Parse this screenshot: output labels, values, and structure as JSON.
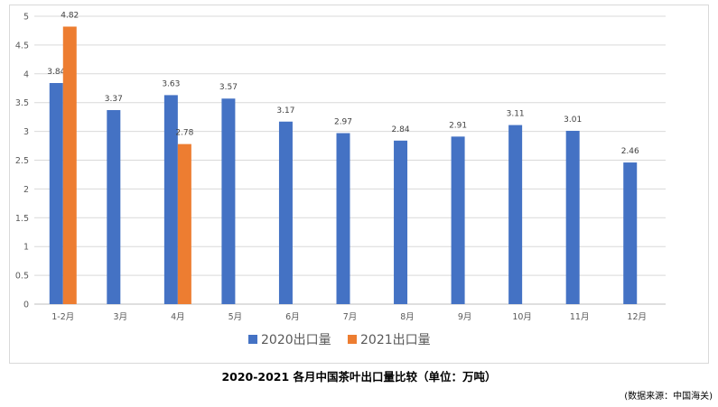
{
  "chart_data": {
    "type": "bar",
    "categories": [
      "1-2月",
      "3月",
      "4月",
      "5月",
      "6月",
      "7月",
      "8月",
      "9月",
      "10月",
      "11月",
      "12月"
    ],
    "series": [
      {
        "name": "2020出口量",
        "color": "#4472C4",
        "values": [
          3.84,
          3.37,
          3.63,
          3.57,
          3.17,
          2.97,
          2.84,
          2.91,
          3.11,
          3.01,
          2.46
        ],
        "labels": [
          "3.84",
          "3.37",
          "3.63",
          "3.57",
          "3.17",
          "2.97",
          "2.84",
          "2.91",
          "3.11",
          "3.01",
          "2.46"
        ]
      },
      {
        "name": "2021出口量",
        "color": "#ED7D31",
        "values": [
          4.82,
          null,
          2.78,
          null,
          null,
          null,
          null,
          null,
          null,
          null,
          null
        ],
        "labels": [
          "4.82",
          null,
          "2.78",
          null,
          null,
          null,
          null,
          null,
          null,
          null,
          null
        ]
      }
    ],
    "y_ticks": [
      "0",
      "0.5",
      "1",
      "1.5",
      "2",
      "2.5",
      "3",
      "3.5",
      "4",
      "4.5",
      "5"
    ],
    "ylim": [
      0,
      5
    ],
    "grid": true,
    "legend_position": "bottom",
    "title": "2020-2021 各月中国茶叶出口量比较（单位：万吨）"
  },
  "source_note": "(数据来源：中国海关)"
}
